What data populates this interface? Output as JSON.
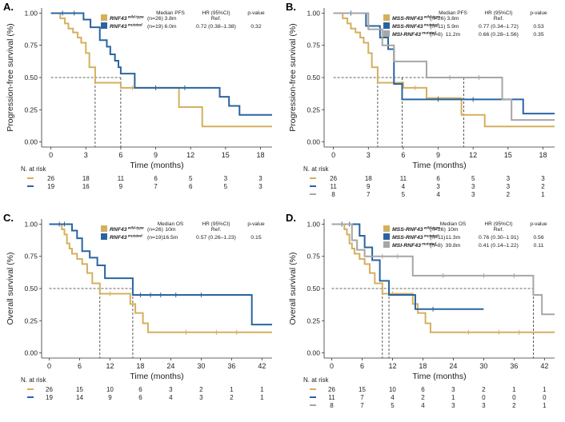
{
  "colors": {
    "wildtype": "#D4B05E",
    "mutated": "#2A64A0",
    "msi": "#A6A6A6",
    "axis": "#333333",
    "text": "#222222"
  },
  "chart_data": [
    {
      "id": "A",
      "type": "line",
      "subtype": "kaplan-meier",
      "panel_label": "A.",
      "ylabel": "Progression-free survival (%)",
      "xlabel": "Time (months)",
      "xticks": [
        0,
        3,
        6,
        9,
        12,
        15,
        18
      ],
      "yticks": [
        "0.00",
        "0.25",
        "0.50",
        "0.75",
        "1.00"
      ],
      "xlim": [
        -0.8,
        19
      ],
      "ylim": [
        -0.04,
        1.04
      ],
      "median_line_y": 0.5,
      "median_vlines": [
        3.8,
        6.0
      ],
      "legend_header": {
        "median": "Median PFS",
        "hr": "HR (95%CI)",
        "p": "p-value"
      },
      "series": [
        {
          "key": "wildtype",
          "label_main": "RNF43",
          "label_sup": "wild-type",
          "n": "(n=26)",
          "median": "3.8m",
          "hr": "Ref.",
          "p": "",
          "x": [
            0,
            0.8,
            1.2,
            1.5,
            1.9,
            2.3,
            2.6,
            3.0,
            3.3,
            3.8,
            6.0,
            11.0,
            13.0,
            17.0,
            19.0
          ],
          "y": [
            1.0,
            0.96,
            0.92,
            0.88,
            0.85,
            0.81,
            0.77,
            0.69,
            0.58,
            0.46,
            0.42,
            0.27,
            0.12,
            0.12,
            0.12
          ],
          "censor": [
            [
              7.0,
              0.42
            ],
            [
              9.0,
              0.42
            ]
          ],
          "at_risk": [
            "26",
            "18",
            "11",
            "6",
            "5",
            "3",
            "3"
          ]
        },
        {
          "key": "mutated",
          "label_main": "RNF43",
          "label_sup": "mutated",
          "n": "(n=19)",
          "median": "6.0m",
          "hr": "0.72 (0.38–1.38)",
          "p": "0.32",
          "x": [
            0,
            2.8,
            3.4,
            4.2,
            4.8,
            5.1,
            5.5,
            5.8,
            6.0,
            7.2,
            14.5,
            15.3,
            16.2,
            17.5,
            19.0
          ],
          "y": [
            1.0,
            0.95,
            0.89,
            0.79,
            0.74,
            0.68,
            0.63,
            0.58,
            0.53,
            0.42,
            0.35,
            0.28,
            0.21,
            0.21,
            0.21
          ],
          "censor": [
            [
              1.0,
              1.0
            ],
            [
              2.0,
              1.0
            ],
            [
              9.0,
              0.42
            ],
            [
              11.5,
              0.42
            ]
          ],
          "at_risk": [
            "19",
            "16",
            "9",
            "7",
            "6",
            "5",
            "3"
          ]
        }
      ]
    },
    {
      "id": "B",
      "type": "line",
      "subtype": "kaplan-meier",
      "panel_label": "B.",
      "ylabel": "Progression-free survival (%)",
      "xlabel": "Time (months)",
      "xticks": [
        0,
        3,
        6,
        9,
        12,
        15,
        18
      ],
      "yticks": [
        "0.00",
        "0.25",
        "0.50",
        "0.75",
        "1.00"
      ],
      "xlim": [
        -0.8,
        19
      ],
      "ylim": [
        -0.04,
        1.04
      ],
      "median_line_y": 0.5,
      "median_vlines": [
        3.8,
        5.9,
        11.2
      ],
      "legend_header": {
        "median": "Median PFS",
        "hr": "HR (95%CI)",
        "p": "p-value"
      },
      "series": [
        {
          "key": "wildtype",
          "label_main": "MSS-RNF43",
          "label_sup": "wild-type",
          "n": "(n=26)",
          "median": "3.8m",
          "hr": "Ref.",
          "p": "",
          "x": [
            0,
            0.8,
            1.2,
            1.5,
            1.9,
            2.3,
            2.6,
            3.0,
            3.3,
            3.8,
            6.0,
            8.0,
            11.0,
            13.0,
            19.0
          ],
          "y": [
            1.0,
            0.96,
            0.92,
            0.88,
            0.85,
            0.81,
            0.77,
            0.69,
            0.58,
            0.46,
            0.42,
            0.34,
            0.21,
            0.12,
            0.12
          ],
          "censor": [
            [
              7.0,
              0.42
            ],
            [
              9.0,
              0.34
            ]
          ],
          "at_risk": [
            "26",
            "18",
            "11",
            "6",
            "5",
            "3",
            "3"
          ]
        },
        {
          "key": "mutated",
          "label_main": "MSS-RNF43",
          "label_sup": "mutated",
          "n": "(n=11)",
          "median": "5.9m",
          "hr": "0.77 (0.34–1.72)",
          "p": "0.53",
          "x": [
            0,
            2.8,
            4.0,
            4.7,
            5.2,
            5.9,
            15.5,
            16.3,
            19.0
          ],
          "y": [
            1.0,
            0.9,
            0.81,
            0.72,
            0.45,
            0.33,
            0.33,
            0.22,
            0.22
          ],
          "censor": [
            [
              1.5,
              1.0
            ],
            [
              9.0,
              0.33
            ],
            [
              12.0,
              0.33
            ]
          ],
          "at_risk": [
            "11",
            "9",
            "4",
            "3",
            "3",
            "3",
            "2"
          ]
        },
        {
          "key": "msi",
          "label_main": "MSI-RNF43",
          "label_sup": "mutated",
          "n": "(n=8)",
          "median": "11.2m",
          "hr": "0.66 (0.28–1.56)",
          "p": "0.35",
          "x": [
            0,
            3.0,
            4.2,
            5.2,
            6.0,
            8.0,
            11.2,
            14.5,
            15.3,
            19.0
          ],
          "y": [
            1.0,
            0.875,
            0.75,
            0.625,
            0.625,
            0.5,
            0.5,
            0.33,
            0.17,
            0.17
          ],
          "censor": [
            [
              10.0,
              0.5
            ],
            [
              12.5,
              0.5
            ]
          ],
          "at_risk": [
            "8",
            "7",
            "5",
            "4",
            "3",
            "2",
            "1"
          ]
        }
      ]
    },
    {
      "id": "C",
      "type": "line",
      "subtype": "kaplan-meier",
      "panel_label": "C.",
      "ylabel": "Overall survival (%)",
      "xlabel": "Time (months)",
      "xticks": [
        0,
        6,
        12,
        18,
        24,
        30,
        36,
        42
      ],
      "yticks": [
        "0.00",
        "0.25",
        "0.50",
        "0.75",
        "1.00"
      ],
      "xlim": [
        -1.5,
        44
      ],
      "ylim": [
        -0.04,
        1.04
      ],
      "median_line_y": 0.5,
      "median_vlines": [
        10.0,
        16.5
      ],
      "legend_header": {
        "median": "Median OS",
        "hr": "HR (95%CI)",
        "p": "p-value"
      },
      "series": [
        {
          "key": "wildtype",
          "label_main": "RNF43",
          "label_sup": "wild-type",
          "n": "(n=26)",
          "median": "10m",
          "hr": "Ref.",
          "p": "",
          "x": [
            0,
            2.5,
            3.0,
            3.5,
            4.0,
            4.5,
            5.5,
            6.5,
            7.5,
            8.5,
            10.0,
            16.0,
            17.0,
            18.5,
            19.5,
            44.0
          ],
          "y": [
            1.0,
            0.96,
            0.92,
            0.85,
            0.81,
            0.77,
            0.73,
            0.69,
            0.62,
            0.54,
            0.46,
            0.38,
            0.31,
            0.23,
            0.16,
            0.16
          ],
          "censor": [
            [
              12.0,
              0.46
            ],
            [
              27.0,
              0.16
            ],
            [
              33.0,
              0.16
            ],
            [
              37.0,
              0.16
            ]
          ],
          "at_risk": [
            "26",
            "15",
            "10",
            "6",
            "3",
            "2",
            "1",
            "1"
          ]
        },
        {
          "key": "mutated",
          "label_main": "RNF43",
          "label_sup": "mutated",
          "n": "(n=19)",
          "median": "16.5m",
          "hr": "0.57 (0.26–1.23)",
          "p": "0.15",
          "x": [
            0,
            4.5,
            5.5,
            6.5,
            8.0,
            9.5,
            11.0,
            16.5,
            40.0,
            44.0
          ],
          "y": [
            1.0,
            0.95,
            0.89,
            0.79,
            0.74,
            0.68,
            0.58,
            0.45,
            0.22,
            0.22
          ],
          "censor": [
            [
              2.0,
              1.0
            ],
            [
              3.0,
              1.0
            ],
            [
              18.0,
              0.45
            ],
            [
              20.0,
              0.45
            ],
            [
              22.0,
              0.45
            ],
            [
              25.0,
              0.45
            ],
            [
              30.0,
              0.45
            ]
          ],
          "at_risk": [
            "19",
            "14",
            "9",
            "6",
            "4",
            "3",
            "2",
            "1"
          ]
        }
      ]
    },
    {
      "id": "D",
      "type": "line",
      "subtype": "kaplan-meier",
      "panel_label": "D.",
      "ylabel": "Overall survival (%)",
      "xlabel": "Time (months)",
      "xticks": [
        0,
        6,
        12,
        18,
        24,
        30,
        36,
        42
      ],
      "yticks": [
        "0.00",
        "0.25",
        "0.50",
        "0.75",
        "1.00"
      ],
      "xlim": [
        -1.5,
        44
      ],
      "ylim": [
        -0.04,
        1.04
      ],
      "median_line_y": 0.5,
      "median_vlines": [
        10.0,
        11.3,
        39.8
      ],
      "legend_header": {
        "median": "Median OS",
        "hr": "HR (95%CI)",
        "p": "p-value"
      },
      "series": [
        {
          "key": "wildtype",
          "label_main": "MSS-RNF43",
          "label_sup": "wild-type",
          "n": "(n=26)",
          "median": "10m",
          "hr": "Ref.",
          "p": "",
          "x": [
            0,
            2.5,
            3.0,
            3.5,
            4.0,
            4.5,
            5.5,
            6.5,
            7.5,
            8.5,
            10.0,
            16.0,
            17.0,
            18.5,
            19.5,
            44.0
          ],
          "y": [
            1.0,
            0.96,
            0.92,
            0.85,
            0.81,
            0.77,
            0.73,
            0.69,
            0.62,
            0.54,
            0.46,
            0.38,
            0.31,
            0.23,
            0.16,
            0.16
          ],
          "censor": [
            [
              12.0,
              0.46
            ],
            [
              27.0,
              0.16
            ],
            [
              33.0,
              0.16
            ],
            [
              37.0,
              0.16
            ]
          ],
          "at_risk": [
            "26",
            "15",
            "10",
            "6",
            "3",
            "2",
            "1",
            "1"
          ]
        },
        {
          "key": "mutated",
          "label_main": "MSS-RNF43",
          "label_sup": "mutated",
          "n": "(n=11)",
          "median": "11.3m",
          "hr": "0.76 (0.30–1.91)",
          "p": "0.56",
          "x": [
            0,
            5.5,
            6.5,
            8.0,
            9.5,
            11.3,
            16.5,
            30.0
          ],
          "y": [
            1.0,
            0.91,
            0.82,
            0.72,
            0.56,
            0.45,
            0.34,
            0.34
          ],
          "censor": [
            [
              2.0,
              1.0
            ],
            [
              3.5,
              1.0
            ],
            [
              20.0,
              0.34
            ]
          ],
          "at_risk": [
            "11",
            "7",
            "4",
            "2",
            "1",
            "0",
            "0",
            "0"
          ]
        },
        {
          "key": "msi",
          "label_main": "MSI-RNF43",
          "label_sup": "mutated",
          "n": "(n=8)",
          "median": "39.8m",
          "hr": "0.41 (0.14–1.22)",
          "p": "0.11",
          "x": [
            0,
            4.0,
            5.0,
            6.5,
            16.0,
            39.8,
            41.5,
            44.0
          ],
          "y": [
            1.0,
            0.875,
            0.8,
            0.75,
            0.6,
            0.45,
            0.3,
            0.3
          ],
          "censor": [
            [
              10.0,
              0.75
            ],
            [
              13.0,
              0.75
            ],
            [
              22.0,
              0.6
            ],
            [
              30.0,
              0.6
            ],
            [
              36.0,
              0.6
            ]
          ],
          "at_risk": [
            "8",
            "7",
            "5",
            "4",
            "3",
            "3",
            "2",
            "1"
          ]
        }
      ]
    }
  ],
  "risk_header": "N. at risk"
}
